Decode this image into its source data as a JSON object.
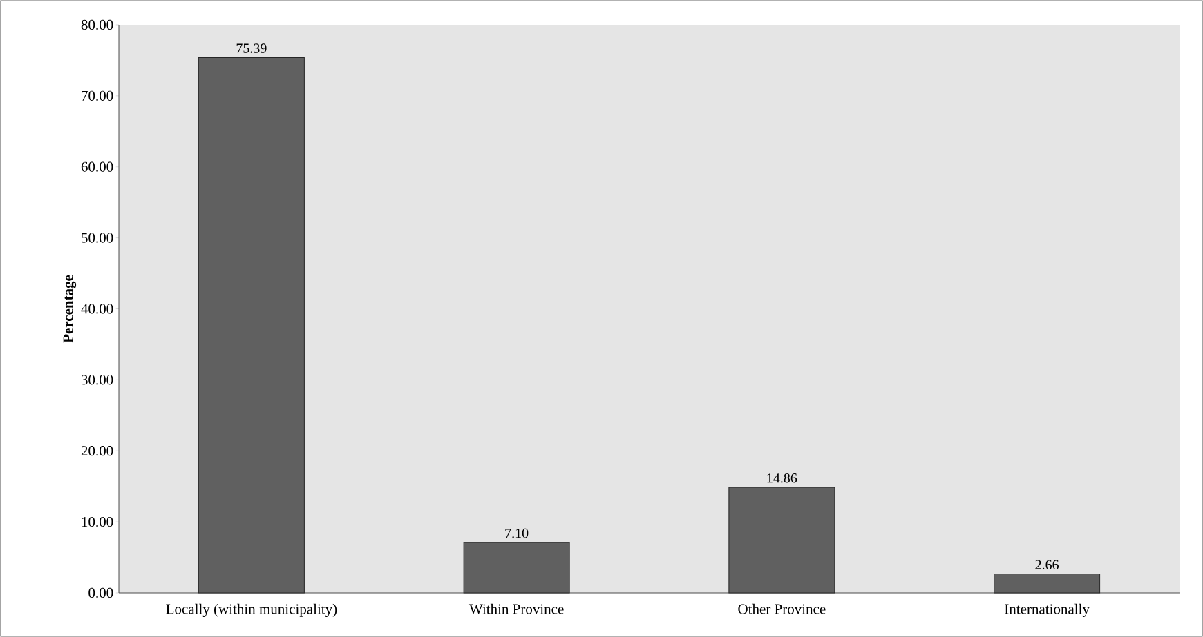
{
  "chart_data": {
    "type": "bar",
    "ylabel": "Percentage",
    "categories": [
      "Locally (within municipality)",
      "Within Province",
      "Other Province",
      "Internationally"
    ],
    "values": [
      75.39,
      7.1,
      14.86,
      2.66
    ],
    "value_labels": [
      "75.39",
      "7.10",
      "14.86",
      "2.66"
    ],
    "color": "#606060",
    "ylim": [
      0,
      80
    ],
    "yticks": [
      {
        "value": 0,
        "label": "0.00"
      },
      {
        "value": 10,
        "label": "10.00"
      },
      {
        "value": 20,
        "label": "20.00"
      },
      {
        "value": 30,
        "label": "30.00"
      },
      {
        "value": 40,
        "label": "40.00"
      },
      {
        "value": 50,
        "label": "50.00"
      },
      {
        "value": 60,
        "label": "60.00"
      },
      {
        "value": 70,
        "label": "70.00"
      },
      {
        "value": 80,
        "label": "80.00"
      }
    ],
    "grid": false
  }
}
